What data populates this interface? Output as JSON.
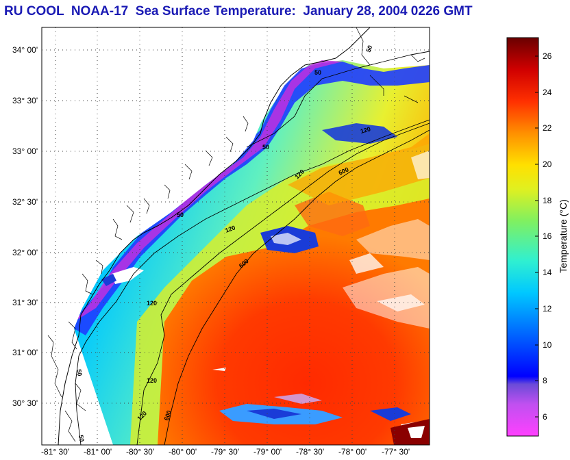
{
  "title": "RU COOL  NOAA-17  Sea Surface Temperature:  January 28, 2004 0226 GMT",
  "map": {
    "lat_ticks": [
      "34° 00'",
      "33° 30'",
      "33° 00'",
      "32° 30'",
      "32° 00'",
      "31° 30'",
      "31° 00'",
      "30° 30'"
    ],
    "lon_ticks": [
      "-81° 30'",
      "-81° 00'",
      "-80° 30'",
      "-80° 00'",
      "-79° 30'",
      "-79° 00'",
      "-78° 30'",
      "-78° 00'",
      "-77° 30'"
    ],
    "contour_labels": [
      {
        "text": "50"
      },
      {
        "text": "50"
      },
      {
        "text": "50"
      },
      {
        "text": "50"
      },
      {
        "text": "50"
      },
      {
        "text": "50"
      },
      {
        "text": "120"
      },
      {
        "text": "120"
      },
      {
        "text": "120"
      },
      {
        "text": "120"
      },
      {
        "text": "120"
      },
      {
        "text": "120"
      },
      {
        "text": "600"
      },
      {
        "text": "600"
      },
      {
        "text": "600"
      }
    ],
    "contour_depths_m": [
      50,
      120,
      600
    ],
    "grid": "dotted"
  },
  "colorbar": {
    "label": "Temperature (°C)",
    "ticks": [
      "26",
      "24",
      "22",
      "20",
      "18",
      "16",
      "14",
      "12",
      "10",
      "8",
      "6"
    ],
    "range": [
      5,
      27
    ],
    "colors": {
      "warm_max": "#7a0000",
      "red": "#ff1a00",
      "orange": "#ff8c00",
      "yellow": "#ffee00",
      "green": "#9aff3a",
      "cyan": "#00e6ff",
      "blue": "#0044ff",
      "purple": "#8a2be2",
      "magenta": "#ff33cc"
    }
  }
}
